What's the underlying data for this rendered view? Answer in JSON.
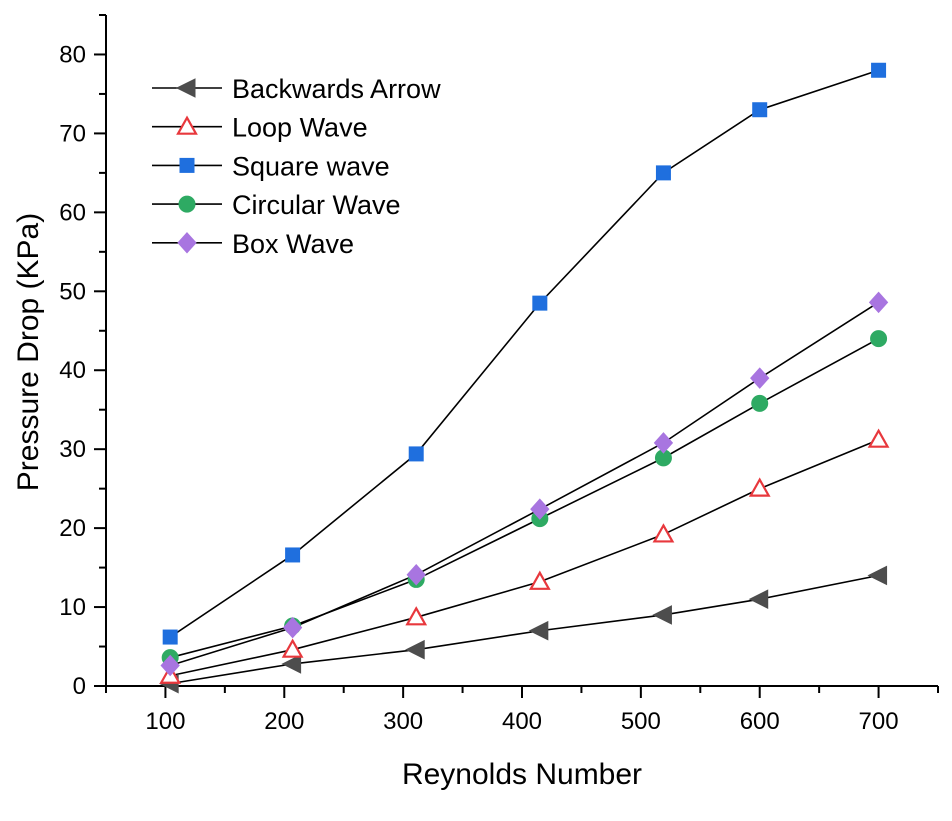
{
  "chart_data": {
    "type": "line",
    "title": "",
    "xlabel": "Reynolds Number",
    "ylabel": "Pressure Drop (KPa)",
    "xlim": [
      50,
      750
    ],
    "ylim": [
      0,
      85
    ],
    "xticks": [
      100,
      200,
      300,
      400,
      500,
      600,
      700
    ],
    "yticks": [
      0,
      10,
      20,
      30,
      40,
      50,
      60,
      70,
      80
    ],
    "grid": false,
    "legend_position": "top-left",
    "series": [
      {
        "name": "Backwards Arrow",
        "marker": "triangle-left",
        "color": "#4d4d4d",
        "filled": true,
        "points": [
          [
            104,
            0.3
          ],
          [
            207,
            2.8
          ],
          [
            311,
            4.6
          ],
          [
            415,
            7.0
          ],
          [
            519,
            9.0
          ],
          [
            600,
            11.0
          ],
          [
            700,
            14.0
          ]
        ]
      },
      {
        "name": "Loop Wave",
        "marker": "triangle-up",
        "color": "#e8383d",
        "filled": false,
        "points": [
          [
            104,
            1.3
          ],
          [
            207,
            4.6
          ],
          [
            311,
            8.7
          ],
          [
            415,
            13.2
          ],
          [
            519,
            19.2
          ],
          [
            600,
            25.0
          ],
          [
            700,
            31.2
          ]
        ]
      },
      {
        "name": "Square wave",
        "marker": "square",
        "color": "#1f6fde",
        "filled": true,
        "points": [
          [
            104,
            6.2
          ],
          [
            207,
            16.6
          ],
          [
            311,
            29.4
          ],
          [
            415,
            48.5
          ],
          [
            519,
            65.0
          ],
          [
            600,
            73.0
          ],
          [
            700,
            78.0
          ]
        ]
      },
      {
        "name": "Circular Wave",
        "marker": "circle",
        "color": "#2eaa63",
        "filled": true,
        "points": [
          [
            104,
            3.6
          ],
          [
            207,
            7.6
          ],
          [
            311,
            13.5
          ],
          [
            415,
            21.2
          ],
          [
            519,
            28.9
          ],
          [
            600,
            35.8
          ],
          [
            700,
            44.0
          ]
        ]
      },
      {
        "name": "Box Wave",
        "marker": "diamond",
        "color": "#a875e0",
        "filled": true,
        "points": [
          [
            104,
            2.6
          ],
          [
            207,
            7.4
          ],
          [
            311,
            14.1
          ],
          [
            415,
            22.4
          ],
          [
            519,
            30.8
          ],
          [
            600,
            39.0
          ],
          [
            700,
            48.6
          ]
        ]
      }
    ]
  }
}
